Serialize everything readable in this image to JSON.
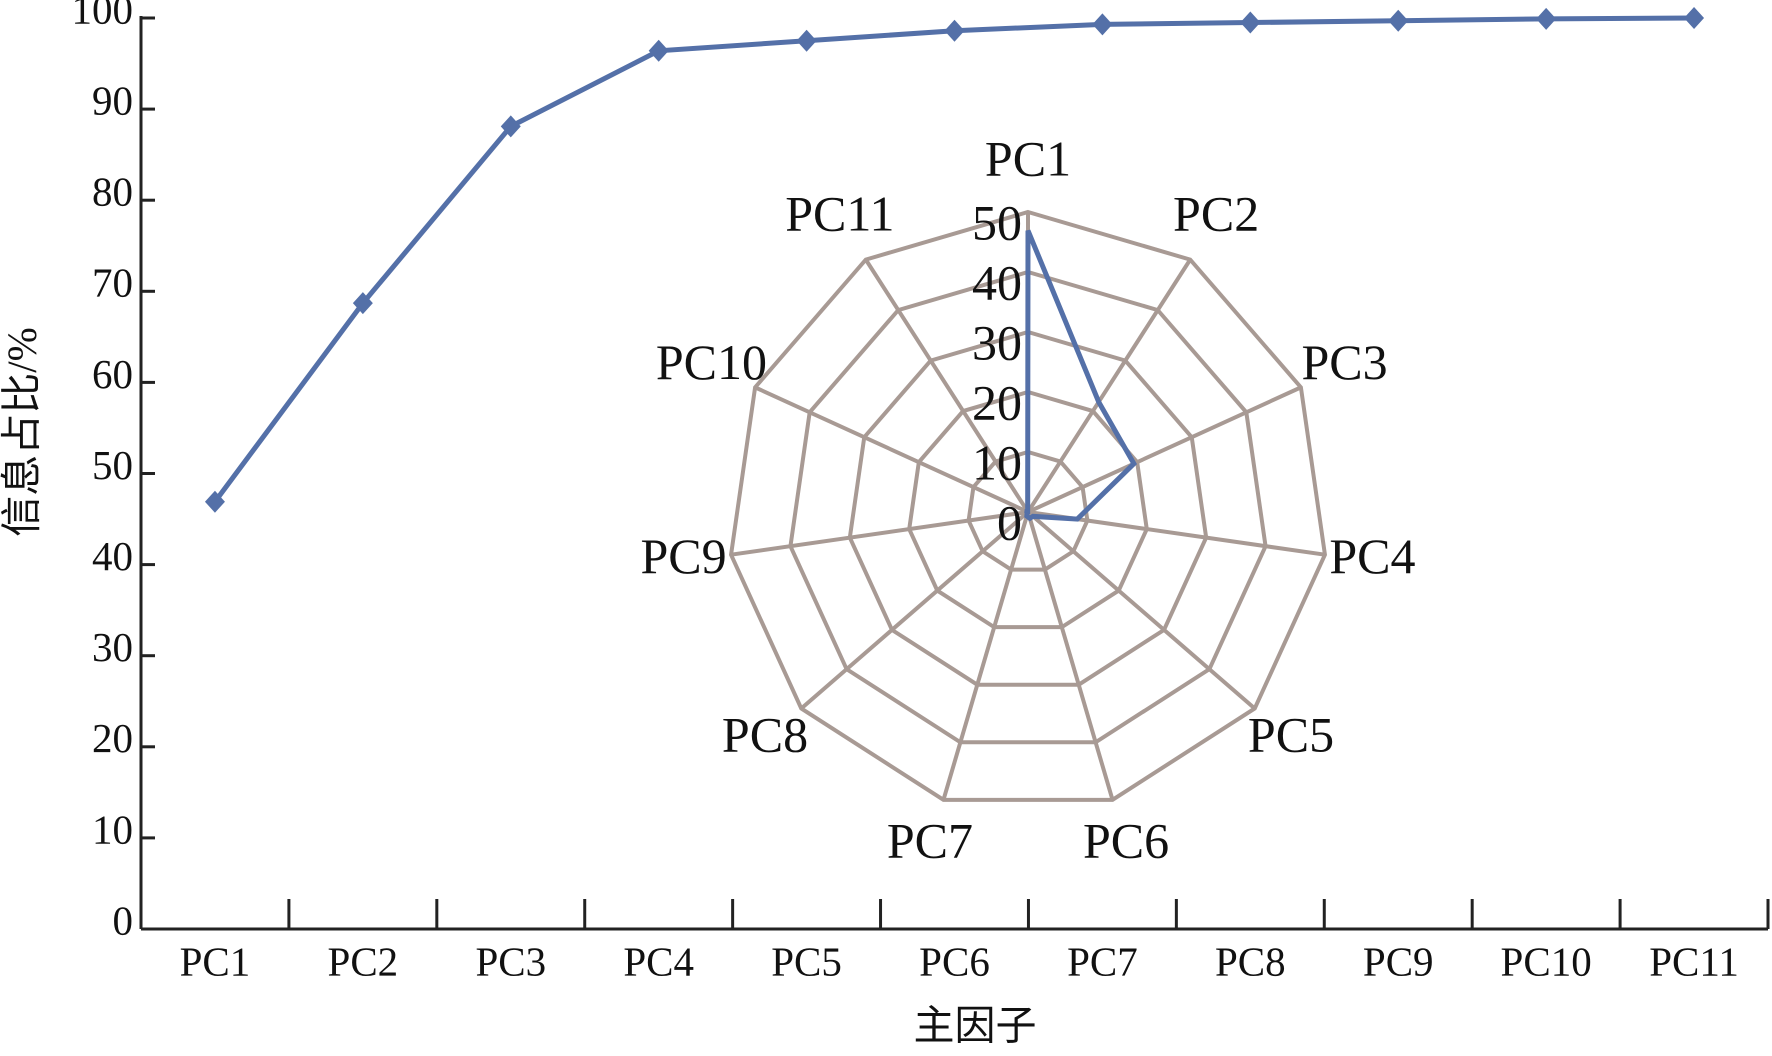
{
  "chart_data": [
    {
      "type": "line",
      "ylabel": "信息占比/%",
      "xlabel": "主因子",
      "categories": [
        "PC1",
        "PC2",
        "PC3",
        "PC4",
        "PC5",
        "PC6",
        "PC7",
        "PC8",
        "PC9",
        "PC10",
        "PC11"
      ],
      "series": [
        {
          "color": "#5470a8",
          "values": [
            46.9,
            68.7,
            88.1,
            96.4,
            97.5,
            98.6,
            99.3,
            99.5,
            99.7,
            99.9,
            100
          ]
        }
      ],
      "ylim": [
        0,
        100
      ],
      "yticks": [
        0,
        10,
        20,
        30,
        40,
        50,
        60,
        70,
        80,
        90,
        100
      ]
    },
    {
      "type": "radar",
      "categories": [
        "PC1",
        "PC2",
        "PC3",
        "PC4",
        "PC5",
        "PC6",
        "PC7",
        "PC8",
        "PC9",
        "PC10",
        "PC11"
      ],
      "series": [
        {
          "color": "#5470a8",
          "values": [
            46.9,
            21.8,
            19.4,
            8.3,
            1.1,
            1.1,
            0.7,
            0.2,
            0.2,
            0.2,
            0.1
          ]
        }
      ],
      "rlim": [
        0,
        50
      ],
      "rticks": [
        0,
        10,
        20,
        30,
        40,
        50
      ],
      "grid_color": "#a89a94"
    }
  ]
}
